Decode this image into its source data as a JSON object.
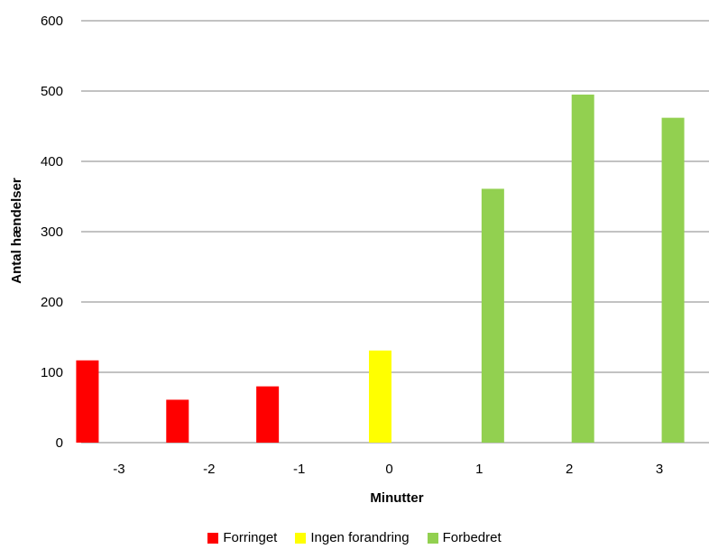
{
  "chart_data": {
    "type": "bar",
    "categories": [
      "-3",
      "-2",
      "-1",
      "0",
      "1",
      "2",
      "3"
    ],
    "series": [
      {
        "name": "Forringet",
        "color": "#ff0000",
        "values": [
          117,
          61,
          80,
          null,
          null,
          null,
          null
        ]
      },
      {
        "name": "Ingen forandring",
        "color": "#ffff00",
        "values": [
          null,
          null,
          null,
          131,
          null,
          null,
          null
        ]
      },
      {
        "name": "Forbedret",
        "color": "#92d050",
        "values": [
          null,
          null,
          null,
          null,
          361,
          495,
          462
        ]
      }
    ],
    "xlabel": "Minutter",
    "ylabel": "Antal hændelser",
    "ylim": [
      0,
      600
    ],
    "yticks": [
      0,
      100,
      200,
      300,
      400,
      500,
      600
    ],
    "grid": true,
    "legend_position": "bottom"
  }
}
